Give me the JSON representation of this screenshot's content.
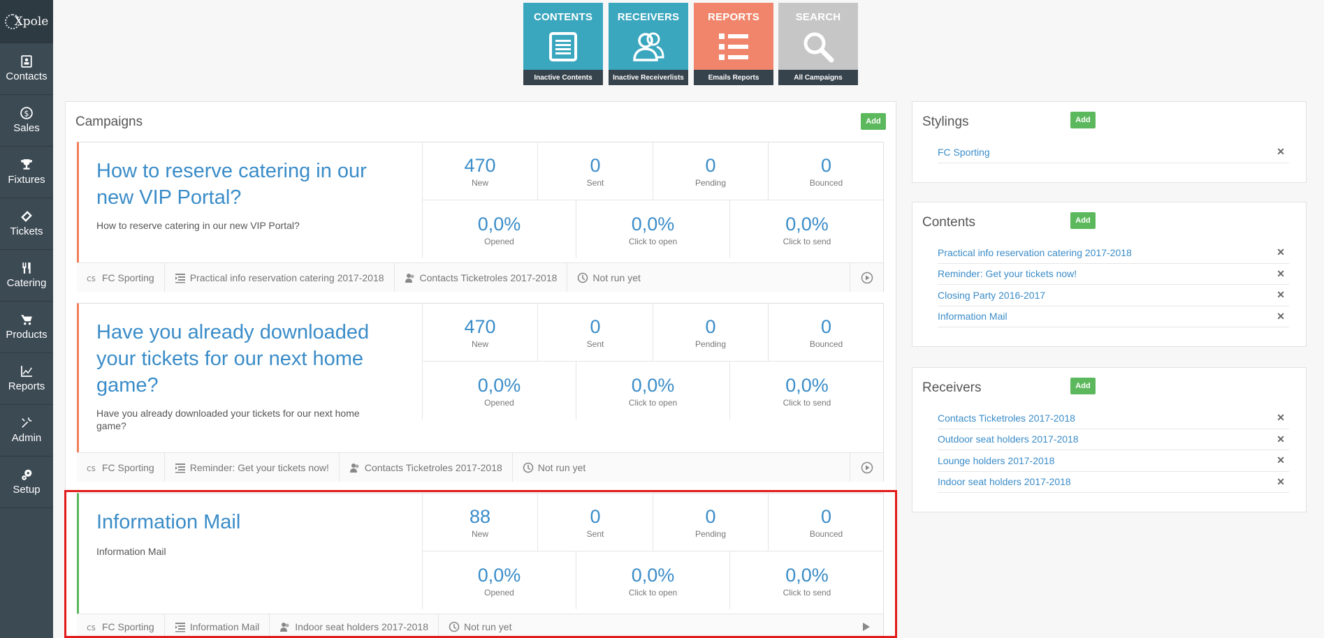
{
  "app": {
    "logo": "Xpole"
  },
  "sidebar": {
    "items": [
      {
        "label": "Contacts",
        "icon": "contacts-icon"
      },
      {
        "label": "Sales",
        "icon": "dollar-icon"
      },
      {
        "label": "Fixtures",
        "icon": "trophy-icon"
      },
      {
        "label": "Tickets",
        "icon": "ticket-icon"
      },
      {
        "label": "Catering",
        "icon": "cutlery-icon"
      },
      {
        "label": "Products",
        "icon": "cart-icon"
      },
      {
        "label": "Reports",
        "icon": "chart-icon"
      },
      {
        "label": "Admin",
        "icon": "tools-icon"
      },
      {
        "label": "Setup",
        "icon": "gears-icon"
      }
    ]
  },
  "tiles": [
    {
      "title": "CONTENTS",
      "footer": "Inactive Contents",
      "color": "#3aa7bf",
      "icon": "document-icon"
    },
    {
      "title": "RECEIVERS",
      "footer": "Inactive Receiverlists",
      "color": "#3aa7bf",
      "icon": "users-icon"
    },
    {
      "title": "REPORTS",
      "footer": "Emails Reports",
      "color": "#f0856b",
      "icon": "list-icon"
    },
    {
      "title": "SEARCH",
      "footer": "All Campaigns",
      "color": "#c6c6c6",
      "icon": "search-icon"
    }
  ],
  "campaigns": {
    "title": "Campaigns",
    "add_label": "Add",
    "stat_labels": {
      "new": "New",
      "sent": "Sent",
      "pending": "Pending",
      "bounced": "Bounced",
      "opened": "Opened",
      "click_to_open": "Click to open",
      "click_to_send": "Click to send"
    },
    "items": [
      {
        "title": "How to reserve catering in our new VIP Portal?",
        "subtitle": "How to reserve catering in our new VIP Portal?",
        "new": "470",
        "sent": "0",
        "pending": "0",
        "bounced": "0",
        "opened": "0,0%",
        "click_to_open": "0,0%",
        "click_to_send": "0,0%",
        "styling": "FC Sporting",
        "content": "Practical info reservation catering 2017-2018",
        "receivers": "Contacts Ticketroles 2017-2018",
        "status": "Not run yet"
      },
      {
        "title": "Have you already downloaded your tickets for our next home game?",
        "subtitle": "Have you already downloaded your tickets for our next home game?",
        "new": "470",
        "sent": "0",
        "pending": "0",
        "bounced": "0",
        "opened": "0,0%",
        "click_to_open": "0,0%",
        "click_to_send": "0,0%",
        "styling": "FC Sporting",
        "content": "Reminder: Get your tickets now!",
        "receivers": "Contacts Ticketroles 2017-2018",
        "status": "Not run yet"
      },
      {
        "title": "Information Mail",
        "subtitle": "Information Mail",
        "new": "88",
        "sent": "0",
        "pending": "0",
        "bounced": "0",
        "opened": "0,0%",
        "click_to_open": "0,0%",
        "click_to_send": "0,0%",
        "styling": "FC Sporting",
        "content": "Information Mail",
        "receivers": "Indoor seat holders 2017-2018",
        "status": "Not run yet"
      }
    ]
  },
  "stylings": {
    "title": "Stylings",
    "add_label": "Add",
    "items": [
      "FC Sporting"
    ]
  },
  "contents": {
    "title": "Contents",
    "add_label": "Add",
    "items": [
      "Practical info reservation catering 2017-2018",
      "Reminder: Get your tickets now!",
      "Closing Party 2016-2017",
      "Information Mail"
    ]
  },
  "receivers": {
    "title": "Receivers",
    "add_label": "Add",
    "items": [
      "Contacts Ticketroles 2017-2018",
      "Outdoor seat holders 2017-2018",
      "Lounge holders 2017-2018",
      "Indoor seat holders 2017-2018"
    ]
  },
  "remove_symbol": "✕"
}
